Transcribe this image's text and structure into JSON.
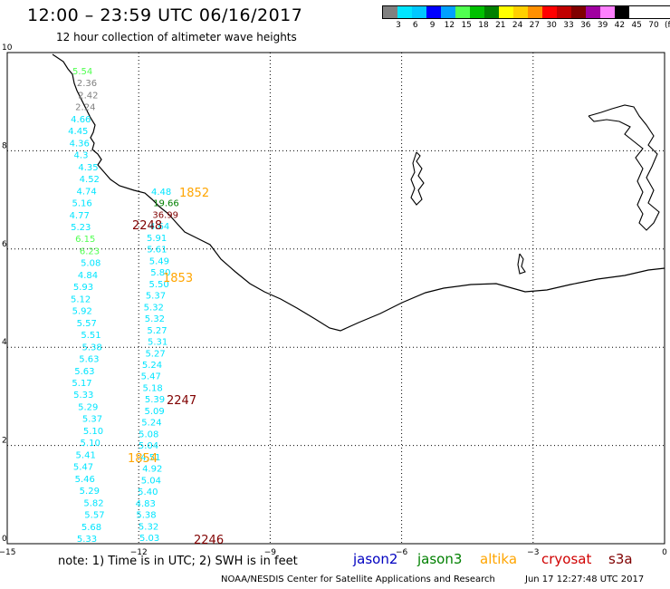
{
  "header": {
    "title": "12:00 – 23:59 UTC 06/16/2017",
    "subtitle": "12 hour collection of altimeter wave heights"
  },
  "color_scale": {
    "labels": [
      "3",
      "6",
      "9",
      "12",
      "15",
      "18",
      "21",
      "24",
      "27",
      "30",
      "33",
      "36",
      "39",
      "42",
      "45",
      "70",
      "(ft)"
    ],
    "colors": [
      "#808080",
      "#00e5ff",
      "#00c8ff",
      "#0000ff",
      "#00a0ff",
      "#50ff50",
      "#00c000",
      "#008000",
      "#ffff00",
      "#ffd000",
      "#ff9000",
      "#ff0000",
      "#c00000",
      "#800000",
      "#a000a0",
      "#ff80ff",
      "#000000"
    ]
  },
  "axes": {
    "x_ticks": [
      "−15",
      "−12",
      "−9",
      "−6",
      "−3",
      "0"
    ],
    "y_ticks": [
      "10",
      "8",
      "6",
      "4",
      "2",
      "0"
    ]
  },
  "time_labels": [
    {
      "text": "1852",
      "color": "#ffa500"
    },
    {
      "text": "2248",
      "color": "#800000"
    },
    {
      "text": "1853",
      "color": "#ffa500"
    },
    {
      "text": "2247",
      "color": "#800000"
    },
    {
      "text": "1854",
      "color": "#ffa500"
    },
    {
      "text": "2246",
      "color": "#800000"
    }
  ],
  "track_left_values": [
    "5.54",
    "2.36",
    "2.42",
    "2.24",
    "4.66",
    "4.45",
    "4.36",
    "4.3",
    "4.35",
    "4.52",
    "4.74",
    "5.16",
    "4.77",
    "5.23",
    "6.15",
    "6.23",
    "5.08",
    "4.84",
    "5.93",
    "5.12",
    "5.92",
    "5.57",
    "5.51",
    "5.38",
    "5.63",
    "5.63",
    "5.17",
    "5.33",
    "5.29",
    "5.37",
    "5.10",
    "5.10",
    "5.41",
    "5.47",
    "5.46",
    "5.29",
    "5.82",
    "5.57",
    "5.68",
    "5.33"
  ],
  "track_right_values": [
    "4.48",
    "19.66",
    "36.99",
    "4.64",
    "5.91",
    "5.61",
    "5.49",
    "5.80",
    "5.50",
    "5.37",
    "5.32",
    "5.32",
    "5.27",
    "5.31",
    "5.27",
    "5.24",
    "5.47",
    "5.18",
    "5.39",
    "5.09",
    "5.24",
    "5.08",
    "5.04",
    "4.51",
    "4.92",
    "5.04",
    "5.40",
    "4.83",
    "5.38",
    "5.32",
    "5.03"
  ],
  "footer": {
    "note": "note: 1) Time is in UTC; 2) SWH is in feet",
    "satellites": [
      {
        "name": "jason2",
        "color": "#0000c0"
      },
      {
        "name": "jason3",
        "color": "#008000"
      },
      {
        "name": "altika",
        "color": "#ffa500"
      },
      {
        "name": "cryosat",
        "color": "#d00000"
      },
      {
        "name": "s3a",
        "color": "#800000"
      }
    ],
    "credit": "NOAA/NESDIS Center for Satellite Applications and Research",
    "timestamp": "Jun 17 12:27:48 UTC 2017"
  }
}
